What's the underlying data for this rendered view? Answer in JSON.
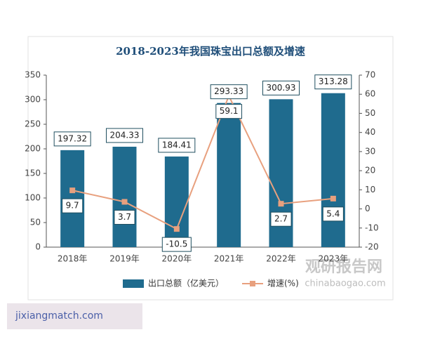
{
  "chart_data": {
    "type": "bar_line",
    "title": "2018-2023年我国珠宝出口总额及增速",
    "categories": [
      "2018年",
      "2019年",
      "2020年",
      "2021年",
      "2022年",
      "2023年"
    ],
    "series": [
      {
        "name": "出口总额（亿美元）",
        "type": "bar",
        "color": "#1f6b8e",
        "values": [
          197.32,
          204.33,
          184.41,
          293.33,
          300.93,
          313.28
        ]
      },
      {
        "name": "增速(%)",
        "type": "line",
        "axis": "y2",
        "color": "#e8a07e",
        "values": [
          9.7,
          3.7,
          -10.5,
          59.1,
          2.7,
          5.4
        ]
      }
    ],
    "ylim": [
      0,
      350
    ],
    "yticks": [
      0,
      50,
      100,
      150,
      200,
      250,
      300,
      350
    ],
    "y2lim": [
      -20,
      70
    ],
    "y2ticks": [
      -20,
      -10,
      0,
      10,
      20,
      30,
      40,
      50,
      60,
      70
    ],
    "legend": "bottom"
  },
  "watermark": {
    "brand": "观研报告网",
    "site": "chinabaogao.com"
  },
  "footer_link": "jixiangmatch.com"
}
